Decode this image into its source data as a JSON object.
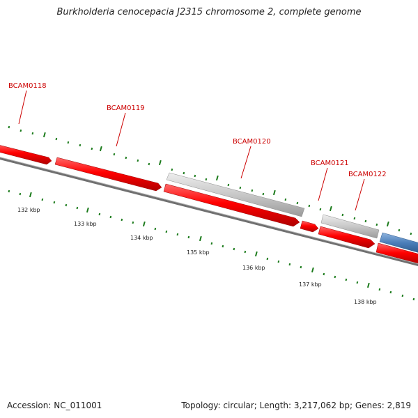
{
  "title": "Burkholderia cenocepacia J2315 chromosome 2, complete genome",
  "footer": {
    "accession": "Accession: NC_011001",
    "summary": "Topology: circular; Length: 3,217,062 bp; Genes: 2,819"
  },
  "colors": {
    "forward_gene": "#ff0000",
    "reverse_gene": "#c8c8c8",
    "blue_gene": "#4a7db8",
    "backbone": "#707070",
    "ticks": "#1a7a1a",
    "label": "#cc0000"
  },
  "ticks": [
    {
      "label": "132 kbp"
    },
    {
      "label": "133 kbp"
    },
    {
      "label": "134 kbp"
    },
    {
      "label": "135 kbp"
    },
    {
      "label": "136 kbp"
    },
    {
      "label": "137 kbp"
    },
    {
      "label": "138 kbp"
    }
  ],
  "genes": [
    {
      "name": "BCAM0118"
    },
    {
      "name": "BCAM0119"
    },
    {
      "name": "BCAM0120"
    },
    {
      "name": "BCAM0121"
    },
    {
      "name": "BCAM0122"
    }
  ]
}
